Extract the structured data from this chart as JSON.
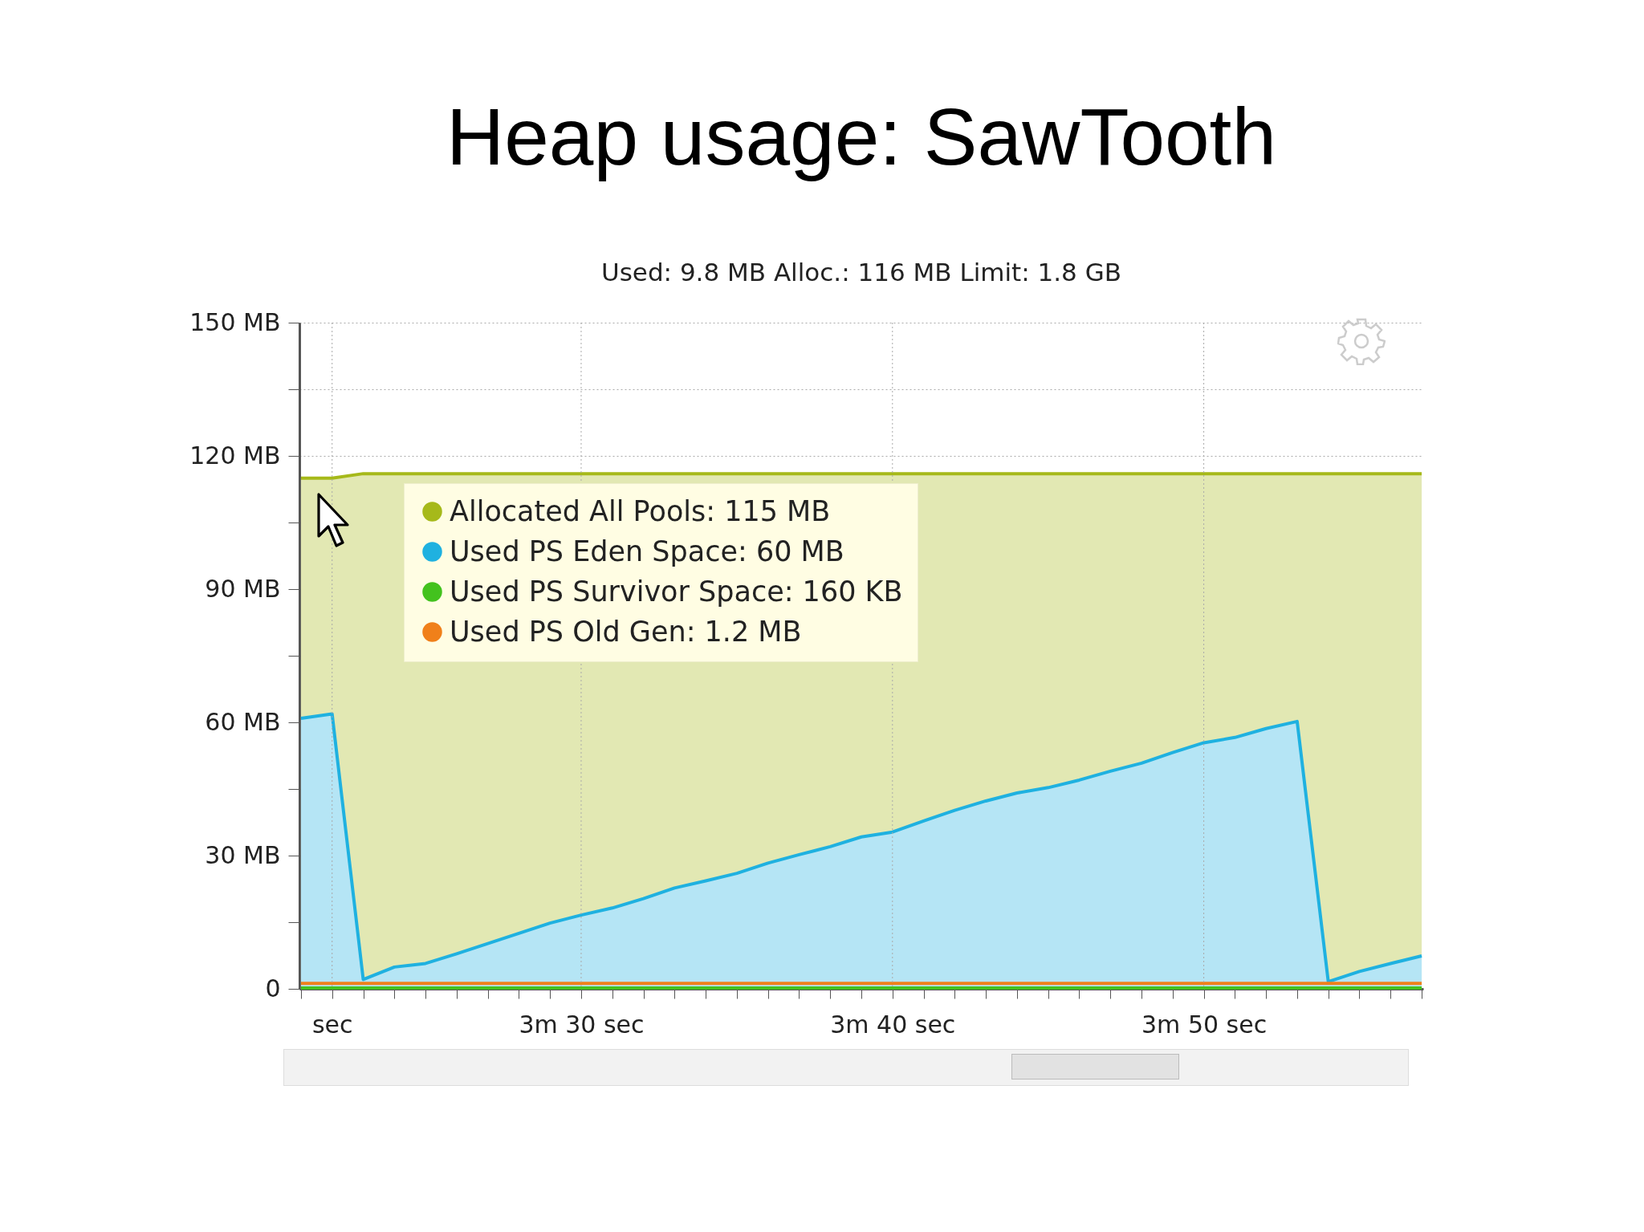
{
  "chart_data": {
    "type": "area",
    "title": "Heap usage: SawTooth",
    "subtitle": "Used: 9.8 MB    Alloc.: 116 MB    Limit: 1.8 GB",
    "categories": [
      null,
      "sec",
      null,
      null,
      null,
      null,
      null,
      null,
      null,
      "3m 30 sec",
      null,
      null,
      null,
      null,
      null,
      null,
      null,
      null,
      null,
      "3m 40 sec",
      null,
      null,
      null,
      null,
      null,
      null,
      null,
      null,
      null,
      "3m 50 sec",
      null,
      null,
      null,
      null,
      null,
      null,
      null
    ],
    "ylim": [
      0,
      150
    ],
    "yticks": [
      0,
      {
        "value": 15,
        "label": null
      },
      {
        "value": 30,
        "label": "30 MB"
      },
      {
        "value": 45,
        "label": null
      },
      {
        "value": 60,
        "label": "60 MB"
      },
      {
        "value": 75,
        "label": null
      },
      {
        "value": 90,
        "label": "90 MB"
      },
      {
        "value": 105,
        "label": null
      },
      {
        "value": 120,
        "label": "120 MB"
      },
      {
        "value": 135,
        "label": null
      },
      {
        "value": 150,
        "label": "150 MB"
      }
    ],
    "grid": true,
    "legend": "top left",
    "series": [
      {
        "name": "Allocated All Pools: 115 MB",
        "type": "area",
        "color": "#a6b91a",
        "values": [
          115,
          115,
          116,
          116,
          116,
          116,
          116,
          116,
          116,
          116,
          116,
          116,
          116,
          116,
          116,
          116,
          116,
          116,
          116,
          116,
          116,
          116,
          116,
          116,
          116,
          116,
          116,
          116,
          116,
          116,
          116,
          116,
          116,
          116,
          116,
          116,
          116
        ]
      },
      {
        "name": "Used PS Eden Space: 60 MB",
        "type": "area",
        "color": "#1fb1e0",
        "values": [
          60.9,
          61.9,
          2.1,
          4.9,
          5.7,
          7.9,
          10.2,
          12.5,
          14.8,
          16.6,
          18.2,
          20.3,
          22.7,
          24.3,
          26.0,
          28.3,
          30.2,
          32.0,
          34.2,
          35.3,
          37.8,
          40.2,
          42.3,
          44.1,
          45.3,
          47.0,
          49.0,
          50.8,
          53.2,
          55.4,
          56.6,
          58.6,
          60.2,
          1.6,
          3.9,
          5.7,
          7.4
        ]
      },
      {
        "name": "Used PS Survivor Space: 160 KB",
        "type": "line",
        "color": "#43c21e",
        "values": [
          0.2,
          0.2,
          0.2,
          0.2,
          0.2,
          0.2,
          0.2,
          0.2,
          0.2,
          0.2,
          0.2,
          0.2,
          0.2,
          0.2,
          0.2,
          0.2,
          0.2,
          0.2,
          0.2,
          0.2,
          0.2,
          0.2,
          0.2,
          0.2,
          0.2,
          0.2,
          0.2,
          0.2,
          0.2,
          0.2,
          0.2,
          0.2,
          0.2,
          0.2,
          0.2,
          0.2,
          0.2
        ]
      },
      {
        "name": "Used PS Old Gen: 1.2 MB",
        "type": "line",
        "color": "#f0801a",
        "values": [
          1.2,
          1.2,
          1.2,
          1.2,
          1.2,
          1.2,
          1.2,
          1.2,
          1.2,
          1.2,
          1.2,
          1.2,
          1.2,
          1.2,
          1.2,
          1.2,
          1.2,
          1.2,
          1.2,
          1.2,
          1.2,
          1.2,
          1.2,
          1.2,
          1.2,
          1.2,
          1.2,
          1.2,
          1.2,
          1.2,
          1.2,
          1.2,
          1.2,
          1.2,
          1.2,
          1.2,
          1.2
        ]
      }
    ]
  }
}
